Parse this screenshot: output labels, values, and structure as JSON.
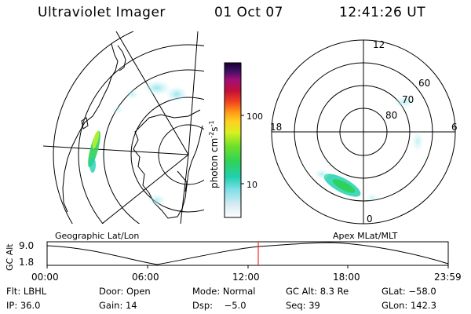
{
  "header": {
    "title": "Ultraviolet Imager",
    "date": "01 Oct 07",
    "time": "12:41:26 UT"
  },
  "colorbar": {
    "unit_main": "photon cm",
    "unit_sup1": "-2",
    "unit_mid": "s",
    "unit_sup2": "-1",
    "ticks": [
      "100",
      "10"
    ]
  },
  "polar_plot": {
    "labels": [
      "12",
      "18",
      "6",
      "0",
      "60",
      "70",
      "80"
    ]
  },
  "timeline": {
    "ylabel": "GC Alt",
    "ytick_top": "9.0",
    "ytick_bottom": "1.8",
    "left_caption": "Geographic Lat/Lon",
    "right_caption": "Apex MLat/MLT",
    "xticks": [
      "00:00",
      "06:00",
      "12:00",
      "18:00",
      "23:59"
    ],
    "current_marker_color": "#ff0000"
  },
  "info": {
    "flt": "Flt: LBHL",
    "door": "Door: Open",
    "mode": "Mode: Normal",
    "gcalt": "GC Alt: 8.3 Re",
    "glat": "GLat: −58.0",
    "ip": "IP: 36.0",
    "gain": "Gain: 14",
    "dsp": "Dsp:    −5.0",
    "seq": "Seq: 39",
    "glon": "GLon: 142.3"
  }
}
